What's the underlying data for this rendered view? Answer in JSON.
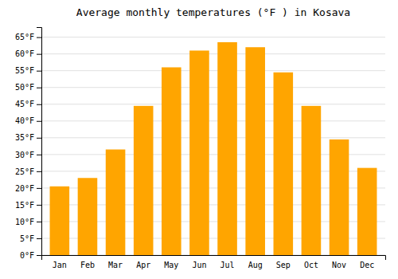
{
  "chart_data": {
    "type": "bar",
    "title": "Average monthly temperatures (°F ) in Kosava",
    "categories": [
      "Jan",
      "Feb",
      "Mar",
      "Apr",
      "May",
      "Jun",
      "Jul",
      "Aug",
      "Sep",
      "Oct",
      "Nov",
      "Dec"
    ],
    "values": [
      20.5,
      23.0,
      31.5,
      44.5,
      56.0,
      61.0,
      63.5,
      62.0,
      54.5,
      44.5,
      34.5,
      26.0
    ],
    "color": "#FFA500",
    "ylim": [
      0,
      68
    ],
    "yticks": [
      {
        "value": 0,
        "label": "0°F"
      },
      {
        "value": 5,
        "label": "5°F"
      },
      {
        "value": 10,
        "label": "10°F"
      },
      {
        "value": 15,
        "label": "15°F"
      },
      {
        "value": 20,
        "label": "20°F"
      },
      {
        "value": 25,
        "label": "25°F"
      },
      {
        "value": 30,
        "label": "30°F"
      },
      {
        "value": 35,
        "label": "35°F"
      },
      {
        "value": 40,
        "label": "40°F"
      },
      {
        "value": 45,
        "label": "45°F"
      },
      {
        "value": 50,
        "label": "50°F"
      },
      {
        "value": 55,
        "label": "55°F"
      },
      {
        "value": 60,
        "label": "60°F"
      },
      {
        "value": 65,
        "label": "65°F"
      }
    ],
    "grid": true
  }
}
